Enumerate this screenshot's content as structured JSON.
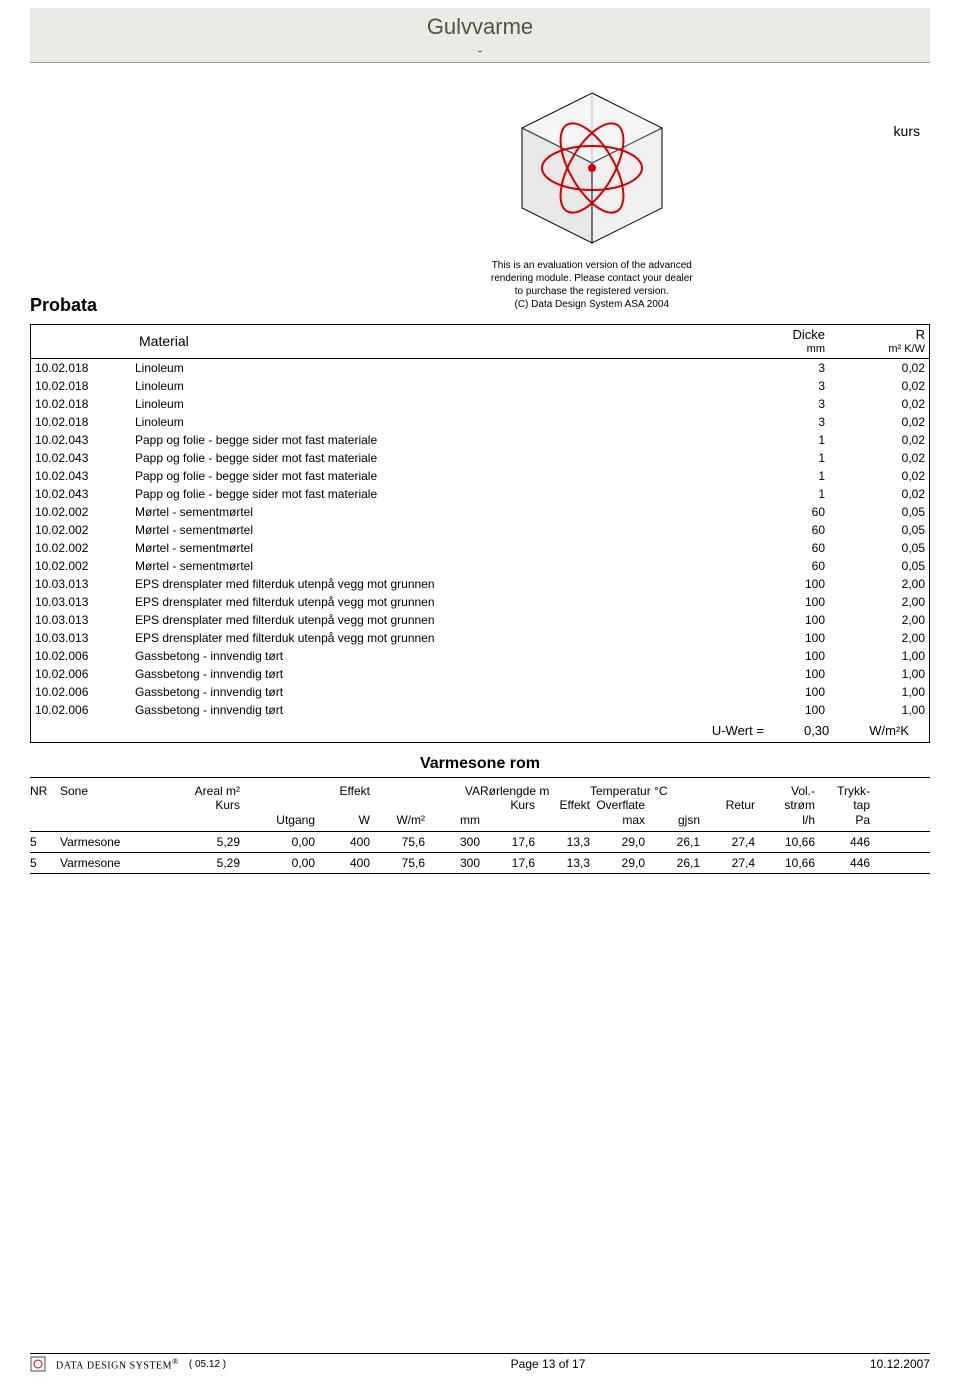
{
  "title": {
    "main": "Gulvvarme",
    "sub": "-"
  },
  "kurs_label": "kurs",
  "eval_text": [
    "This is an evaluation version of the advanced",
    "rendering module. Please contact your dealer",
    "to purchase the registered version.",
    "(C) Data Design System ASA 2004"
  ],
  "probata": "Probata",
  "material_box": {
    "header": {
      "material": "Material",
      "dicke": "Dicke",
      "dicke_unit": "mm",
      "r": "R",
      "r_unit": "m² K/W"
    },
    "rows": [
      {
        "code": "10.02.018",
        "desc": "Linoleum",
        "dicke": "3",
        "r": "0,02"
      },
      {
        "code": "10.02.018",
        "desc": "Linoleum",
        "dicke": "3",
        "r": "0,02"
      },
      {
        "code": "10.02.018",
        "desc": "Linoleum",
        "dicke": "3",
        "r": "0,02"
      },
      {
        "code": "10.02.018",
        "desc": "Linoleum",
        "dicke": "3",
        "r": "0,02"
      },
      {
        "code": "10.02.043",
        "desc": "Papp og folie - begge sider mot fast materiale",
        "dicke": "1",
        "r": "0,02"
      },
      {
        "code": "10.02.043",
        "desc": "Papp og folie - begge sider mot fast materiale",
        "dicke": "1",
        "r": "0,02"
      },
      {
        "code": "10.02.043",
        "desc": "Papp og folie - begge sider mot fast materiale",
        "dicke": "1",
        "r": "0,02"
      },
      {
        "code": "10.02.043",
        "desc": "Papp og folie - begge sider mot fast materiale",
        "dicke": "1",
        "r": "0,02"
      },
      {
        "code": "10.02.002",
        "desc": "Mørtel - sementmørtel",
        "dicke": "60",
        "r": "0,05"
      },
      {
        "code": "10.02.002",
        "desc": "Mørtel - sementmørtel",
        "dicke": "60",
        "r": "0,05"
      },
      {
        "code": "10.02.002",
        "desc": "Mørtel - sementmørtel",
        "dicke": "60",
        "r": "0,05"
      },
      {
        "code": "10.02.002",
        "desc": "Mørtel - sementmørtel",
        "dicke": "60",
        "r": "0,05"
      },
      {
        "code": "10.03.013",
        "desc": "EPS drensplater med filterduk utenpå vegg mot grunnen",
        "dicke": "100",
        "r": "2,00"
      },
      {
        "code": "10.03.013",
        "desc": "EPS drensplater med filterduk utenpå vegg mot grunnen",
        "dicke": "100",
        "r": "2,00"
      },
      {
        "code": "10.03.013",
        "desc": "EPS drensplater med filterduk utenpå vegg mot grunnen",
        "dicke": "100",
        "r": "2,00"
      },
      {
        "code": "10.03.013",
        "desc": "EPS drensplater med filterduk utenpå vegg mot grunnen",
        "dicke": "100",
        "r": "2,00"
      },
      {
        "code": "10.02.006",
        "desc": "Gassbetong - innvendig tørt",
        "dicke": "100",
        "r": "1,00"
      },
      {
        "code": "10.02.006",
        "desc": "Gassbetong - innvendig tørt",
        "dicke": "100",
        "r": "1,00"
      },
      {
        "code": "10.02.006",
        "desc": "Gassbetong - innvendig tørt",
        "dicke": "100",
        "r": "1,00"
      },
      {
        "code": "10.02.006",
        "desc": "Gassbetong - innvendig tørt",
        "dicke": "100",
        "r": "1,00"
      }
    ],
    "uwert": {
      "label": "U-Wert =",
      "value": "0,30",
      "unit": "W/m²K"
    }
  },
  "zone": {
    "title": "Varmesone rom",
    "header": {
      "nr": "NR",
      "sone": "Sone",
      "areal": "Areal m²",
      "kurs": "Kurs",
      "utgang": "Utgang",
      "effekt": "Effekt",
      "w": "W",
      "wm2": "W/m²",
      "va": "VA",
      "va_unit": "mm",
      "rorlengde": "Rørlengde m",
      "r_kurs": "Kurs",
      "r_effekt": "Effekt",
      "temp": "Temperatur °C",
      "overflate": "Overflate",
      "max": "max",
      "gjsn": "gjsn",
      "retur": "Retur",
      "vol": "Vol.-",
      "strom": "strøm",
      "lh": "l/h",
      "trykk": "Trykk-",
      "tap": "tap",
      "pa": "Pa"
    },
    "rows": [
      {
        "nr": "5",
        "sone": "Varmesone",
        "areal": "5,29",
        "utgang": "0,00",
        "w": "400",
        "wm2": "75,6",
        "va": "300",
        "kurs": "17,6",
        "effekt": "13,3",
        "max": "29,0",
        "gjsn": "26,1",
        "retur": "27,4",
        "vol": "10,66",
        "pa": "446"
      },
      {
        "nr": "5",
        "sone": "Varmesone",
        "areal": "5,29",
        "utgang": "0,00",
        "w": "400",
        "wm2": "75,6",
        "va": "300",
        "kurs": "17,6",
        "effekt": "13,3",
        "max": "29,0",
        "gjsn": "26,1",
        "retur": "27,4",
        "vol": "10,66",
        "pa": "446"
      }
    ]
  },
  "footer": {
    "brand": "DATA DESIGN SYSTEM",
    "version": "( 05.12 )",
    "page": "Page 13 of 17",
    "date": "10.12.2007"
  },
  "logo": {
    "cube_stroke": "#000000",
    "cube_fill_top": "#f5f5f5",
    "cube_fill_left": "#e0e0e0",
    "cube_fill_right": "#ededed",
    "ellipse_stroke": "#d40000",
    "ellipse_width": 2
  }
}
